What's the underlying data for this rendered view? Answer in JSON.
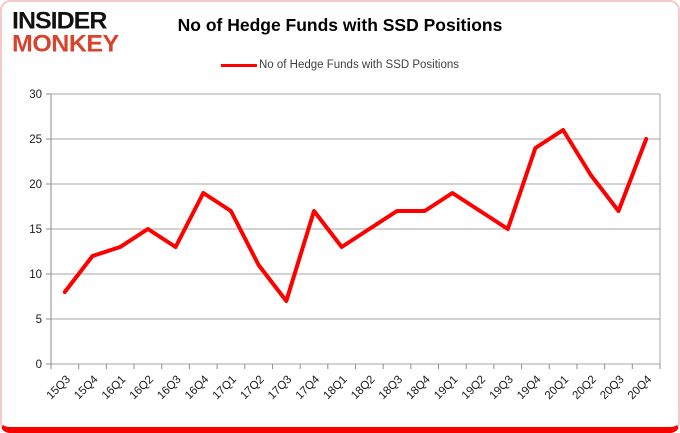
{
  "header": {
    "logo_line1": "INSIDER",
    "logo_line2": "MONKEY",
    "title": "No of Hedge Funds with SSD Positions"
  },
  "legend": {
    "label": "No of Hedge Funds with SSD Positions"
  },
  "colors": {
    "line": "#fe0000",
    "grid": "#a6a6a6",
    "axis": "#8c8c8c",
    "tick_label": "#1a1a1a",
    "logo_red": "#d9432e",
    "bottom_bar": "#f60000",
    "frame_border": "#f6caca"
  },
  "chart_data": {
    "type": "line",
    "title": "No of Hedge Funds with SSD Positions",
    "categories": [
      "15Q3",
      "15Q4",
      "16Q1",
      "16Q2",
      "16Q3",
      "16Q4",
      "17Q1",
      "17Q2",
      "17Q3",
      "17Q4",
      "18Q1",
      "18Q2",
      "18Q3",
      "18Q4",
      "19Q1",
      "19Q2",
      "19Q3",
      "19Q4",
      "20Q1",
      "20Q2",
      "20Q3",
      "20Q4"
    ],
    "series": [
      {
        "name": "No of Hedge Funds with SSD Positions",
        "values": [
          8,
          12,
          13,
          15,
          13,
          19,
          17,
          11,
          7,
          17,
          13,
          15,
          17,
          17,
          19,
          17,
          15,
          24,
          26,
          21,
          17,
          25
        ]
      }
    ],
    "xlabel": "",
    "ylabel": "",
    "ylim": [
      0,
      30
    ],
    "yticks": [
      0,
      5,
      10,
      15,
      20,
      25,
      30
    ],
    "grid": true,
    "legend_position": "top"
  }
}
